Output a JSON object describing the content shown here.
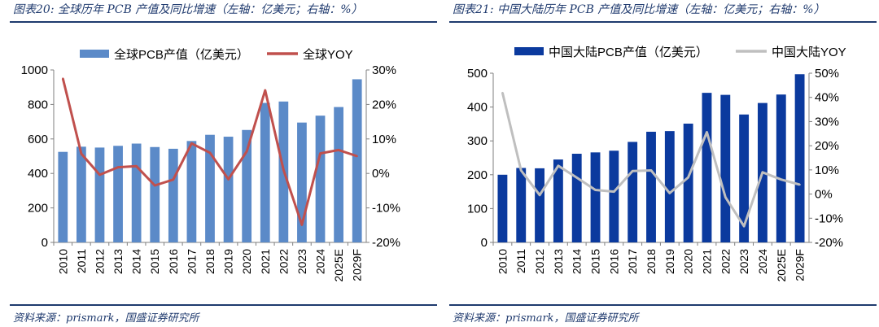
{
  "chart_data": [
    {
      "type": "bar",
      "figure_title": "图表20:  全球历年 PCB 产值及同比增速（左轴：亿美元；右轴：%）",
      "source": "资料来源：prismark，国盛证券研究所",
      "categories": [
        "2010",
        "2011",
        "2012",
        "2013",
        "2014",
        "2015",
        "2016",
        "2017",
        "2018",
        "2019",
        "2020",
        "2021",
        "2022",
        "2023",
        "2024",
        "2025E",
        "2029F"
      ],
      "series": [
        {
          "name": "全球PCB产值（亿美元）",
          "kind": "bar",
          "axis": "left",
          "values": [
            525,
            555,
            550,
            560,
            573,
            553,
            543,
            588,
            624,
            613,
            652,
            809,
            817,
            695,
            735,
            785,
            946
          ]
        },
        {
          "name": "全球YOY",
          "kind": "line",
          "axis": "right",
          "values": [
            27.5,
            5.7,
            -0.4,
            1.8,
            2.1,
            -3.5,
            -1.8,
            8.7,
            6.0,
            -1.7,
            6.4,
            24.1,
            1.0,
            -14.9,
            5.8,
            6.8,
            5.0
          ]
        }
      ],
      "y_left": {
        "min": 0,
        "max": 1000,
        "ticks": [
          0,
          200,
          400,
          600,
          800,
          1000
        ]
      },
      "y_right": {
        "min": -20,
        "max": 30,
        "ticks": [
          -20,
          -10,
          0,
          10,
          20,
          30
        ]
      },
      "y_right_tick_labels": [
        "-20%",
        "-10%",
        "0%",
        "10%",
        "20%",
        "30%"
      ],
      "colors": {
        "bar": "#5b8ac8",
        "line": "#c0504d"
      },
      "legend": "top"
    },
    {
      "type": "bar",
      "figure_title": "图表21:  中国大陆历年 PCB 产值及同比增速（左轴：亿美元；右轴：%）",
      "source": "资料来源：prismark，国盛证券研究所",
      "categories": [
        "2010",
        "2011",
        "2012",
        "2013",
        "2014",
        "2015",
        "2016",
        "2017",
        "2018",
        "2019",
        "2020",
        "2021",
        "2022",
        "2023",
        "2024",
        "2025E",
        "2029F"
      ],
      "series": [
        {
          "name": "中国大陆PCB产值（亿美元）",
          "kind": "bar",
          "axis": "left",
          "values": [
            200,
            220,
            219,
            245,
            262,
            266,
            271,
            297,
            327,
            329,
            351,
            442,
            436,
            378,
            412,
            437,
            497
          ]
        },
        {
          "name": "中国大陆YOY",
          "kind": "line",
          "axis": "right",
          "values": [
            41.9,
            9.8,
            -0.4,
            11.7,
            6.8,
            1.7,
            1.0,
            9.5,
            9.8,
            0.4,
            6.9,
            25.6,
            -1.3,
            -13.3,
            9.0,
            6.0,
            3.9
          ]
        }
      ],
      "y_left": {
        "min": 0,
        "max": 500,
        "ticks": [
          0,
          100,
          200,
          300,
          400,
          500
        ]
      },
      "y_right": {
        "min": -20,
        "max": 50,
        "ticks": [
          -20,
          -10,
          0,
          10,
          20,
          30,
          40,
          50
        ]
      },
      "y_right_tick_labels": [
        "-20%",
        "-10%",
        "0%",
        "10%",
        "20%",
        "30%",
        "40%",
        "50%"
      ],
      "colors": {
        "bar": "#0b3a9e",
        "line": "#bfbfbf"
      },
      "legend": "top"
    }
  ]
}
